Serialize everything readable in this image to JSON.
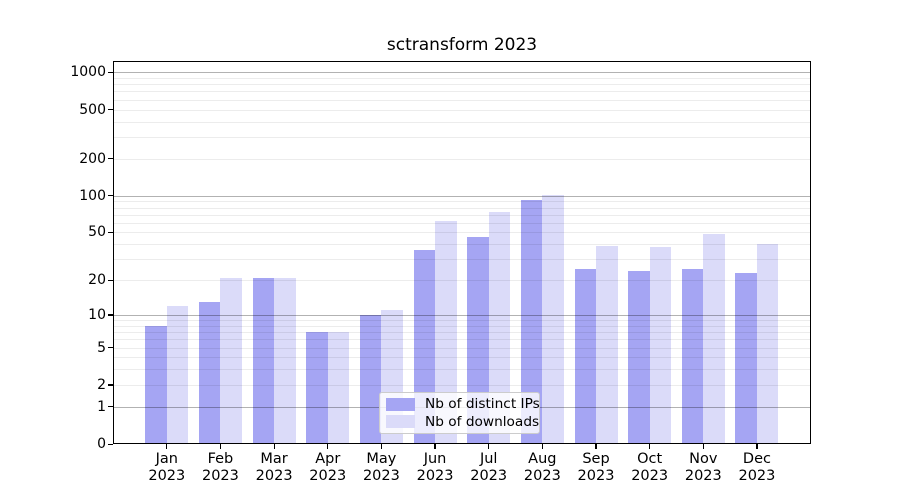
{
  "chart_data": {
    "type": "bar",
    "title": "sctransform 2023",
    "categories": [
      "Jan",
      "Feb",
      "Mar",
      "Apr",
      "May",
      "Jun",
      "Jul",
      "Aug",
      "Sep",
      "Oct",
      "Nov",
      "Dec"
    ],
    "year_label": "2023",
    "series": [
      {
        "name": "Nb of distinct IPs",
        "color": "#a5a5f3",
        "values": [
          8,
          13,
          21,
          7,
          10,
          36,
          46,
          92,
          25,
          24,
          25,
          23
        ]
      },
      {
        "name": "Nb of downloads",
        "color": "#dbdbf9",
        "values": [
          12,
          21,
          21,
          7,
          11,
          62,
          73,
          101,
          39,
          38,
          49,
          40
        ]
      }
    ],
    "xlabel": "",
    "ylabel": "",
    "yscale": "log1p",
    "ylim": [
      0,
      1240
    ],
    "ytick_values": [
      0,
      1,
      2,
      5,
      10,
      20,
      50,
      100,
      200,
      500,
      1000
    ],
    "ytick_labels": [
      "0",
      "1",
      "2",
      "5",
      "10",
      "20",
      "50",
      "100",
      "200",
      "500",
      "1000"
    ],
    "major_grid_values": [
      1,
      10,
      100,
      1000
    ],
    "minor_grid_values": [
      2,
      3,
      4,
      5,
      6,
      7,
      8,
      9,
      20,
      30,
      40,
      50,
      60,
      70,
      80,
      90,
      200,
      300,
      400,
      500,
      600,
      700,
      800,
      900
    ],
    "grid": "on",
    "legend_position": "lower center"
  },
  "colors": {
    "bar_distinct_ips": "#a5a5f3",
    "bar_downloads": "#dbdbf9",
    "grid_major": "rgba(0,0,0,0.30)",
    "grid_minor": "rgba(0,0,0,0.075)",
    "axis": "#000000",
    "legend_border": "#cccccc"
  }
}
